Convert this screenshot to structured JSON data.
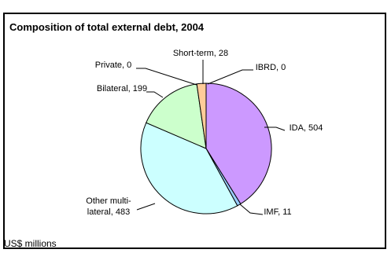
{
  "chart_data": {
    "type": "pie",
    "title": "Composition of total external debt, 2004",
    "units_label": "US$ millions",
    "slices": [
      {
        "name": "IDA",
        "value": 504,
        "label": "IDA, 504",
        "color": "#cc99ff"
      },
      {
        "name": "IMF",
        "value": 11,
        "label": "IMF, 11",
        "color": "#99ccff"
      },
      {
        "name": "Other multi-lateral",
        "value": 483,
        "label_lines": [
          "Other multi-",
          "lateral, 483"
        ],
        "color": "#ccffff"
      },
      {
        "name": "Bilateral",
        "value": 199,
        "label": "Bilateral, 199",
        "color": "#ccffcc"
      },
      {
        "name": "Private",
        "value": 0,
        "label": "Private, 0",
        "color": "#ffff99"
      },
      {
        "name": "Short-term",
        "value": 28,
        "label": "Short-term, 28",
        "color": "#ffcc99"
      },
      {
        "name": "IBRD",
        "value": 0,
        "label": "IBRD, 0",
        "color": "#ff9999"
      }
    ]
  }
}
